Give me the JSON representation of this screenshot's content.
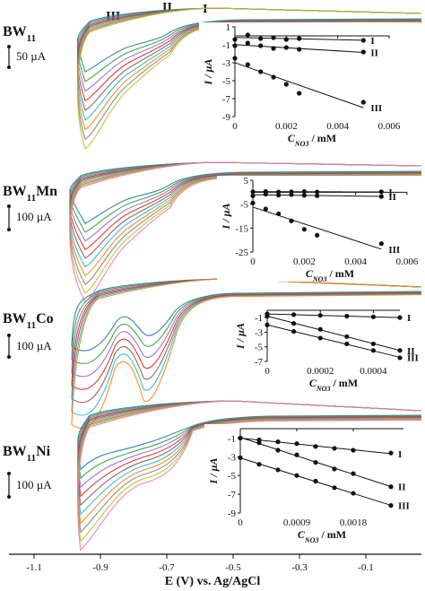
{
  "colors": {
    "axis": "#111111",
    "inset_marker": "#111111",
    "series": [
      "#1f77b4",
      "#2ca02c",
      "#9467bd",
      "#d62728",
      "#8c564b",
      "#17becf",
      "#ff7f0e",
      "#7f7f7f",
      "#bcbd22",
      "#e377c2",
      "#4b8bbe",
      "#a6761d"
    ]
  },
  "x_axis": {
    "label": "E (V) vs. Ag/AgCl",
    "ticks": [
      "-1.1",
      "-0.9",
      "-0.7",
      "-0.5",
      "-0.3",
      "-0.1"
    ]
  },
  "peak_labels": [
    "III",
    "II",
    "I"
  ],
  "chart_data": [
    {
      "type": "line",
      "panel": "BW11",
      "label_main": "BW",
      "label_sub": "11",
      "label_suffix": "",
      "scale_bar_label": "50 µA",
      "curve_count": 9,
      "inset": {
        "type": "scatter",
        "xlabel_main": "C",
        "xlabel_sub": "NO3",
        "xlabel_suffix": "/ mM",
        "ylabel": "I / µA",
        "xlim": [
          0,
          0.006
        ],
        "ylim": [
          -9,
          1
        ],
        "xticks": [
          "0",
          "0.002",
          "0.004",
          "0.006"
        ],
        "yticks": [
          "1",
          "-1",
          "-3",
          "-5",
          "-7",
          "-9"
        ],
        "series": [
          {
            "name": "I",
            "x": [
              0,
              0.0005,
              0.001,
              0.0015,
              0.002,
              0.0025,
              0.005
            ],
            "y": [
              -0.4,
              0.1,
              -0.3,
              -0.2,
              -0.4,
              -0.3,
              -0.5
            ]
          },
          {
            "name": "II",
            "x": [
              0,
              0.0005,
              0.001,
              0.0015,
              0.002,
              0.0025,
              0.005
            ],
            "y": [
              -1.1,
              -0.8,
              -1.1,
              -1.4,
              -1.3,
              -1.5,
              -1.8
            ]
          },
          {
            "name": "III",
            "x": [
              0,
              0.0005,
              0.001,
              0.0015,
              0.002,
              0.0025,
              0.005
            ],
            "y": [
              -2.5,
              -3.2,
              -4.0,
              -4.6,
              -5.4,
              -6.4,
              -7.4
            ]
          }
        ]
      }
    },
    {
      "type": "line",
      "panel": "BW11Mn",
      "label_main": "BW",
      "label_sub": "11",
      "label_suffix": "Mn",
      "scale_bar_label": "100 µA",
      "curve_count": 10,
      "inset": {
        "type": "scatter",
        "xlabel_main": "C",
        "xlabel_sub": "NO3",
        "xlabel_suffix": "/ mM",
        "ylabel": "I / µA",
        "xlim": [
          0,
          0.006
        ],
        "ylim": [
          -25,
          5
        ],
        "xticks": [
          "0",
          "0.002",
          "0.004",
          "0.006"
        ],
        "yticks": [
          "5",
          "-5",
          "-15",
          "-25"
        ],
        "series": [
          {
            "name": "I",
            "x": [
              0,
              0.0005,
              0.001,
              0.0015,
              0.002,
              0.0025,
              0.005
            ],
            "y": [
              0.2,
              0.3,
              0.1,
              0.2,
              0.3,
              0.1,
              0.2
            ]
          },
          {
            "name": "II",
            "x": [
              0,
              0.0005,
              0.001,
              0.0015,
              0.002,
              0.0025,
              0.005
            ],
            "y": [
              -1.5,
              -0.8,
              -1.2,
              -1.0,
              -1.3,
              -1.5,
              -1.8
            ]
          },
          {
            "name": "III",
            "x": [
              0,
              0.0005,
              0.001,
              0.0015,
              0.002,
              0.0025,
              0.005
            ],
            "y": [
              -4.5,
              -7,
              -9,
              -12,
              -15.5,
              -18,
              -21.5
            ]
          }
        ]
      }
    },
    {
      "type": "line",
      "panel": "BW11Co",
      "label_main": "BW",
      "label_sub": "11",
      "label_suffix": "Co",
      "scale_bar_label": "100 µA",
      "curve_count": 7,
      "inset": {
        "type": "scatter",
        "xlabel_main": "C",
        "xlabel_sub": "NO3",
        "xlabel_suffix": "/ mM",
        "ylabel": "I / µA",
        "xlim": [
          0,
          0.0005
        ],
        "ylim": [
          -7,
          0
        ],
        "xticks": [
          "0",
          "0.0002",
          "0.0004"
        ],
        "yticks": [
          "-1",
          "-3",
          "-5",
          "-7"
        ],
        "series": [
          {
            "name": "I",
            "x": [
              0,
              0.0001,
              0.0002,
              0.0003,
              0.0004,
              0.0005
            ],
            "y": [
              -0.5,
              -0.6,
              -0.7,
              -0.8,
              -0.9,
              -1.0
            ]
          },
          {
            "name": "II",
            "x": [
              0,
              0.0001,
              0.0002,
              0.0003,
              0.0004,
              0.0005
            ],
            "y": [
              -0.8,
              -1.8,
              -2.6,
              -3.6,
              -4.6,
              -5.5
            ]
          },
          {
            "name": "III",
            "x": [
              0,
              0.0001,
              0.0002,
              0.0003,
              0.0004,
              0.0005
            ],
            "y": [
              -2.0,
              -2.9,
              -3.8,
              -4.6,
              -5.5,
              -6.5
            ]
          }
        ]
      }
    },
    {
      "type": "line",
      "panel": "BW11Ni",
      "label_main": "BW",
      "label_sub": "11",
      "label_suffix": "Ni",
      "scale_bar_label": "100 µA",
      "curve_count": 10,
      "inset": {
        "type": "scatter",
        "xlabel_main": "C",
        "xlabel_sub": "NO3",
        "xlabel_suffix": "/ mM",
        "ylabel": "I / µA",
        "xlim": [
          0,
          0.0026
        ],
        "ylim": [
          -9,
          0
        ],
        "xticks": [
          "0",
          "0.0009",
          "0.0018"
        ],
        "yticks": [
          "-1",
          "-3",
          "-5",
          "-7",
          "-9"
        ],
        "series": [
          {
            "name": "I",
            "x": [
              0,
              0.0003,
              0.0006,
              0.0009,
              0.0012,
              0.0015,
              0.0018,
              0.0024
            ],
            "y": [
              -1.0,
              -1.2,
              -1.4,
              -1.6,
              -1.9,
              -2.1,
              -2.3,
              -2.6
            ]
          },
          {
            "name": "II",
            "x": [
              0,
              0.0003,
              0.0006,
              0.0009,
              0.0012,
              0.0015,
              0.0018,
              0.0024
            ],
            "y": [
              -1.0,
              -1.5,
              -2.3,
              -2.8,
              -3.6,
              -4.3,
              -4.8,
              -6.2
            ]
          },
          {
            "name": "III",
            "x": [
              0,
              0.0003,
              0.0006,
              0.0009,
              0.0012,
              0.0015,
              0.0018,
              0.0024
            ],
            "y": [
              -3.1,
              -3.8,
              -4.4,
              -5.0,
              -5.6,
              -6.3,
              -6.9,
              -8.2
            ]
          }
        ]
      }
    }
  ]
}
